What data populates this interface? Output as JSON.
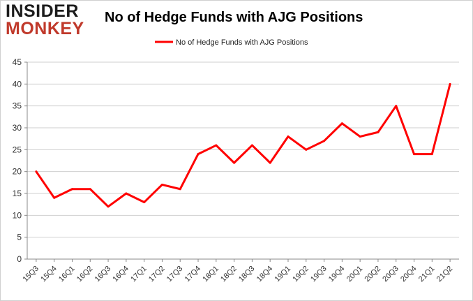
{
  "logo": {
    "line1": "INSIDER",
    "line2": "MONKEY"
  },
  "chart_data": {
    "type": "line",
    "title": "No of Hedge Funds with AJG Positions",
    "categories": [
      "15Q3",
      "15Q4",
      "16Q1",
      "16Q2",
      "16Q3",
      "16Q4",
      "17Q1",
      "17Q2",
      "17Q3",
      "17Q4",
      "18Q1",
      "18Q2",
      "18Q3",
      "18Q4",
      "19Q1",
      "19Q2",
      "19Q3",
      "19Q4",
      "20Q1",
      "20Q2",
      "20Q3",
      "20Q4",
      "21Q1",
      "21Q2"
    ],
    "series": [
      {
        "name": "No of Hedge Funds with AJG Positions",
        "color": "#ff0000",
        "values": [
          20,
          14,
          16,
          16,
          12,
          15,
          13,
          17,
          16,
          24,
          26,
          22,
          26,
          22,
          28,
          25,
          27,
          31,
          28,
          29,
          35,
          24,
          24,
          40
        ]
      }
    ],
    "yticks": [
      0,
      5,
      10,
      15,
      20,
      25,
      30,
      35,
      40,
      45
    ],
    "ylim": [
      0,
      45
    ],
    "grid": true,
    "legend_position": "top-center"
  }
}
